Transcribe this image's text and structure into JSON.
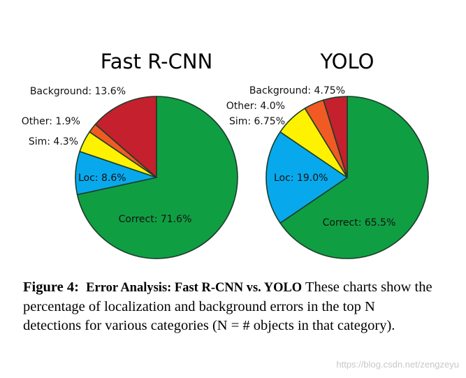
{
  "chart_data": [
    {
      "type": "pie",
      "title": "Fast R-CNN",
      "slices": [
        {
          "label": "Correct: 71.6%",
          "value": 71.6,
          "color": "#109e43"
        },
        {
          "label": "Loc: 8.6%",
          "value": 8.6,
          "color": "#08a9ec"
        },
        {
          "label": "Sim: 4.3%",
          "value": 4.3,
          "color": "#fff200"
        },
        {
          "label": "Other: 1.9%",
          "value": 1.9,
          "color": "#f15a22"
        },
        {
          "label": "Background: 13.6%",
          "value": 13.6,
          "color": "#c4202e"
        }
      ]
    },
    {
      "type": "pie",
      "title": "YOLO",
      "slices": [
        {
          "label": "Correct: 65.5%",
          "value": 65.5,
          "color": "#109e43"
        },
        {
          "label": "Loc: 19.0%",
          "value": 19.0,
          "color": "#08a9ec"
        },
        {
          "label": "Sim: 6.75%",
          "value": 6.75,
          "color": "#fff200"
        },
        {
          "label": "Other: 4.0%",
          "value": 4.0,
          "color": "#f15a22"
        },
        {
          "label": "Background: 4.75%",
          "value": 4.75,
          "color": "#c4202e"
        }
      ]
    }
  ],
  "caption": {
    "lead": "Figure 4:",
    "title": "Error Analysis: Fast R-CNN vs.  YOLO",
    "body": " These charts show the percentage of localization and background errors in the top N detections for various categories (N = # objects in that category)."
  },
  "watermark": "https://blog.csdn.net/zengzeyu"
}
